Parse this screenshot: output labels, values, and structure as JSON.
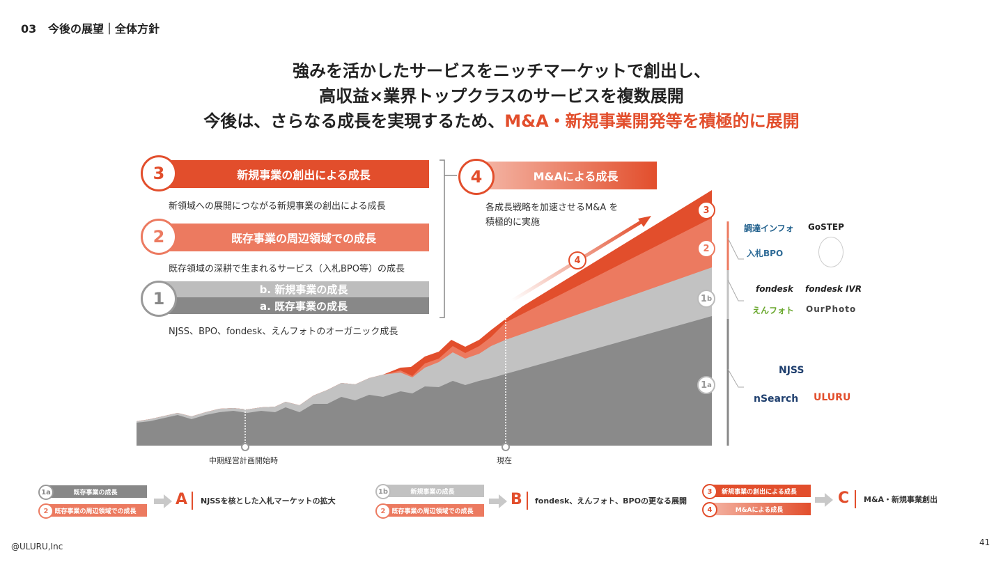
{
  "section": {
    "number": "03",
    "title": "今後の展望｜全体方針"
  },
  "headline": {
    "line1": "強みを活かしたサービスをニッチマーケットで創出し、",
    "line2": "高収益×業界トップクラスのサービスを複数展開",
    "line3_prefix": "今後は、さらなる成長を実現するため、",
    "line3_accent": "M&A・新規事業開発等を積極的に展開"
  },
  "colors": {
    "accent": "#e24e2c",
    "light_accent": "#ec7a60",
    "gray_light": "#bdbdbd",
    "gray_dark": "#888888"
  },
  "growth": {
    "g3": {
      "num": "3",
      "label": "新規事業の創出による成長",
      "desc": "新領域への展開につながる新規事業の創出による成長"
    },
    "g2": {
      "num": "2",
      "label": "既存事業の周辺領域での成長",
      "desc": "既存領域の深耕で生まれるサービス（入札BPO等）の成長"
    },
    "g1": {
      "num": "1",
      "label_b": "b. 新規事業の成長",
      "label_a": "a. 既存事業の成長",
      "desc": "NJSS、BPO、fondesk、えんフォトのオーガニック成長"
    },
    "g4": {
      "num": "4",
      "label": "M&Aによる成長",
      "desc_line1": "各成長戦略を加速させるM&A を",
      "desc_line2": "積極的に実施"
    }
  },
  "chart_markers": {
    "start": "中期経営計画開始時",
    "now": "現在",
    "c3": "3",
    "c2": "2",
    "c1b_num": "1",
    "c1b_sub": "b",
    "c1a_num": "1",
    "c1a_sub": "a",
    "c4": "4"
  },
  "logos": {
    "l1": "調達インフォ",
    "l2": "GoSTEP",
    "l3": "入札BPO",
    "l4": "",
    "l5": "fondesk",
    "l6": "fondesk IVR",
    "l7": "えんフォト",
    "l8": "OurPhoto",
    "l9": "NJSS",
    "l10": "nSearch",
    "l11": "ULURU"
  },
  "legend": {
    "a": {
      "c1": "1a",
      "b1": "既存事業の成長",
      "c2": "2",
      "b2": "既存事業の周辺領域での成長",
      "letter": "A",
      "text": "NJSSを核とした入札マーケットの拡大"
    },
    "b": {
      "c1": "1b",
      "b1": "新規事業の成長",
      "c2": "2",
      "b2": "既存事業の周辺領域での成長",
      "letter": "B",
      "text": "fondesk、えんフォト、BPOの更なる展開"
    },
    "c": {
      "c1": "3",
      "b1": "新規事業の創出による成長",
      "c2": "4",
      "b2": "M&Aによる成長",
      "letter": "C",
      "text": "M&A・新規事業創出"
    }
  },
  "footer": {
    "company": "@ULURU,Inc",
    "page": "41"
  }
}
